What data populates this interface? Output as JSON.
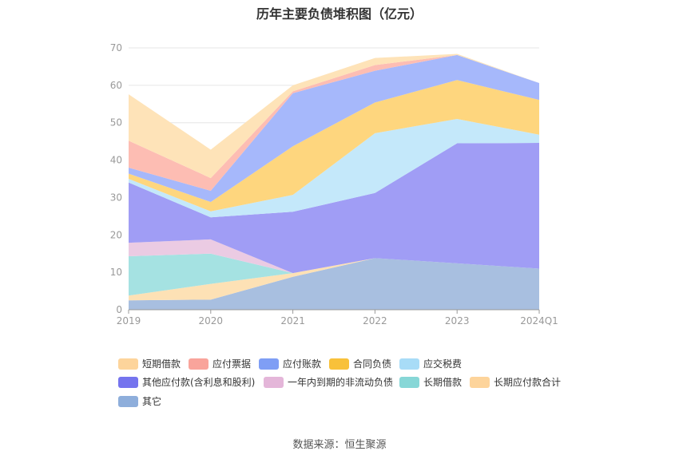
{
  "page": {
    "title": "历年主要负债堆积图（亿元）",
    "source": "数据来源：恒生聚源"
  },
  "chart_data": {
    "type": "area",
    "stacked": true,
    "title": "历年主要负债堆积图（亿元）",
    "categories": [
      "2019",
      "2020",
      "2021",
      "2022",
      "2023",
      "2024Q1"
    ],
    "y_ticks": [
      "0",
      "10",
      "20",
      "30",
      "40",
      "50",
      "60",
      "70"
    ],
    "ylim": [
      0,
      70
    ],
    "grid": true,
    "legend_position": "bottom",
    "series": [
      {
        "name": "其它",
        "color": "#a8bfe0",
        "values": [
          2.5,
          2.7,
          8.8,
          13.8,
          12.4,
          11.0
        ]
      },
      {
        "name": "长期应付款合计",
        "color": "#fde1b5",
        "values": [
          1.3,
          4.2,
          1.0,
          0.0,
          0.0,
          0.0
        ]
      },
      {
        "name": "长期借款",
        "color": "#a5e2e2",
        "values": [
          10.5,
          8.1,
          0.0,
          0.0,
          0.0,
          0.0
        ]
      },
      {
        "name": "一年内到期的非流动负债",
        "color": "#ebcbe3",
        "values": [
          3.6,
          3.8,
          0.0,
          0.0,
          0.0,
          0.0
        ]
      },
      {
        "name": "其他应付款(含利息和股利)",
        "color": "#a09df5",
        "values": [
          16.1,
          5.9,
          16.4,
          17.4,
          32.1,
          33.6
        ]
      },
      {
        "name": "应交税费",
        "color": "#c4e8fa",
        "values": [
          1.0,
          1.6,
          4.5,
          16.0,
          6.5,
          2.2
        ]
      },
      {
        "name": "合同负债",
        "color": "#fed67e",
        "values": [
          1.4,
          2.5,
          13.0,
          8.2,
          10.4,
          9.3
        ]
      },
      {
        "name": "应付账款",
        "color": "#a6b8fb",
        "values": [
          1.6,
          3.0,
          14.2,
          8.5,
          6.7,
          4.5
        ]
      },
      {
        "name": "应付票据",
        "color": "#fdbdb3",
        "values": [
          7.2,
          3.4,
          0.5,
          1.5,
          0.0,
          0.0
        ]
      },
      {
        "name": "短期借款",
        "color": "#fee3b8",
        "values": [
          12.4,
          7.6,
          1.6,
          1.9,
          0.3,
          0.0
        ]
      }
    ],
    "legend_order": [
      "短期借款",
      "应付票据",
      "应付账款",
      "合同负债",
      "应交税费",
      "其他应付款(含利息和股利)",
      "一年内到期的非流动负债",
      "长期借款",
      "长期应付款合计",
      "其它"
    ],
    "legend_colors": {
      "短期借款": "#fdd49b",
      "应付票据": "#f9a49b",
      "应付账款": "#7f9ef5",
      "合同负债": "#f8c13a",
      "应交税费": "#a8dcf7",
      "其他应付款(含利息和股利)": "#7574ee",
      "一年内到期的非流动负债": "#e4b6d9",
      "长期借款": "#87d7d7",
      "长期应付款合计": "#fdd49b",
      "其它": "#8eaedb"
    }
  }
}
